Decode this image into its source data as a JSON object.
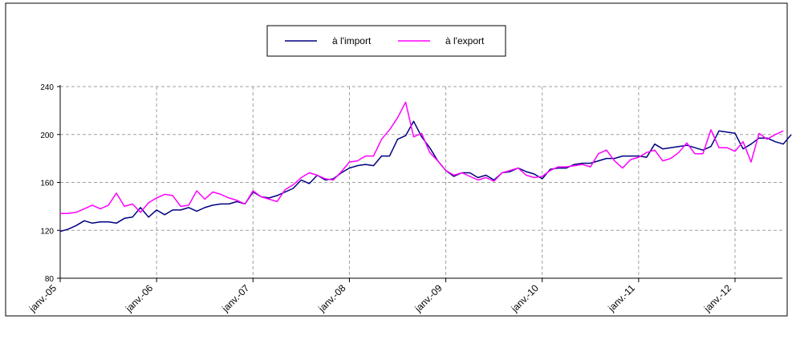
{
  "chart_data": {
    "type": "line",
    "title": "",
    "xlabel": "",
    "ylabel": "",
    "ylim": [
      80,
      240
    ],
    "yticks": [
      80,
      120,
      160,
      200,
      240
    ],
    "xtick_labels": [
      "janv.-05",
      "janv.-06",
      "janv.-07",
      "janv.-08",
      "janv.-09",
      "janv.-10",
      "janv.-11",
      "janv.-12"
    ],
    "x_start": "janv.-05",
    "frequency": "monthly",
    "grid": true,
    "legend_position": "top-center",
    "series": [
      {
        "name": "à l'import",
        "color": "#000080",
        "values": [
          119,
          121,
          124,
          128,
          126,
          127,
          127,
          126,
          130,
          131,
          139,
          131,
          137,
          133,
          137,
          137,
          139,
          136,
          139,
          141,
          142,
          142,
          144,
          142,
          152,
          148,
          147,
          149,
          152,
          155,
          162,
          159,
          166,
          162,
          163,
          168,
          172,
          174,
          175,
          174,
          182,
          182,
          196,
          199,
          211,
          198,
          189,
          178,
          170,
          165,
          168,
          168,
          164,
          166,
          162,
          168,
          169,
          172,
          169,
          167,
          163,
          171,
          172,
          172,
          175,
          176,
          176,
          178,
          180,
          180,
          182,
          182,
          182,
          181,
          192,
          188,
          189,
          190,
          191,
          189,
          187,
          190,
          203,
          202,
          201,
          188,
          192,
          197,
          197,
          194,
          192,
          200
        ]
      },
      {
        "name": "à l'export",
        "color": "#ff00ff",
        "values": [
          134,
          134,
          135,
          138,
          141,
          138,
          141,
          151,
          140,
          142,
          135,
          143,
          147,
          150,
          149,
          140,
          141,
          153,
          146,
          152,
          150,
          147,
          145,
          142,
          153,
          148,
          146,
          144,
          154,
          158,
          164,
          168,
          166,
          163,
          162,
          169,
          177,
          178,
          182,
          182,
          196,
          204,
          214,
          227,
          198,
          201,
          185,
          178,
          170,
          166,
          168,
          165,
          162,
          164,
          161,
          168,
          170,
          172,
          166,
          164,
          165,
          170,
          173,
          173,
          174,
          175,
          173,
          184,
          187,
          178,
          172,
          179,
          181,
          185,
          187,
          178,
          180,
          185,
          193,
          184,
          184,
          204,
          189,
          189,
          186,
          194,
          177,
          201,
          196,
          200,
          203
        ]
      }
    ]
  }
}
